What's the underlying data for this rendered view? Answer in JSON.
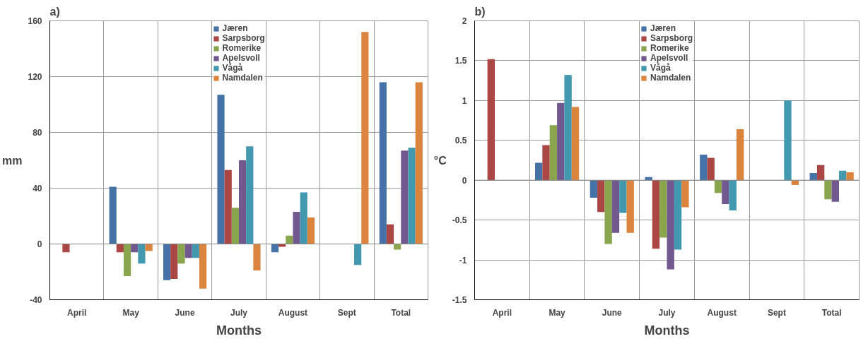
{
  "chart_data": [
    {
      "type": "bar",
      "title": "a)",
      "xlabel": "Months",
      "ylabel": "mm",
      "categories": [
        "April",
        "May",
        "June",
        "July",
        "August",
        "Sept",
        "Total"
      ],
      "ylim": [
        -40,
        160
      ],
      "yticks": [
        -40,
        0,
        40,
        80,
        120,
        160
      ],
      "grid": true,
      "legend": "top",
      "series": [
        {
          "name": "Jæren",
          "color": "#4572a7",
          "values": [
            null,
            41,
            -26,
            107,
            -6,
            null,
            116
          ]
        },
        {
          "name": "Sarpsborg",
          "color": "#aa4643",
          "values": [
            -6,
            -6,
            -25,
            53,
            -2,
            null,
            14
          ]
        },
        {
          "name": "Romerike",
          "color": "#89a54e",
          "values": [
            null,
            -23,
            -14,
            26,
            6,
            null,
            -4
          ]
        },
        {
          "name": "Apelsvoll",
          "color": "#71588f",
          "values": [
            null,
            -6,
            -10,
            60,
            23,
            null,
            67
          ]
        },
        {
          "name": "Vågå",
          "color": "#4198af",
          "values": [
            null,
            -14,
            -10,
            70,
            37,
            -15,
            69
          ]
        },
        {
          "name": "Namdalen",
          "color": "#db843d",
          "values": [
            null,
            -5,
            -32,
            -19,
            19,
            152,
            116
          ]
        }
      ]
    },
    {
      "type": "bar",
      "title": "b)",
      "xlabel": "Months",
      "ylabel": "°C",
      "categories": [
        "April",
        "May",
        "June",
        "July",
        "August",
        "Sept",
        "Total"
      ],
      "ylim": [
        -1.5,
        2
      ],
      "yticks": [
        -1.5,
        -1,
        -0.5,
        0,
        0.5,
        1,
        1.5,
        2
      ],
      "grid": true,
      "legend": "top",
      "series": [
        {
          "name": "Jæren",
          "color": "#4572a7",
          "values": [
            null,
            0.22,
            -0.22,
            0.04,
            0.32,
            null,
            0.09
          ]
        },
        {
          "name": "Sarpsborg",
          "color": "#aa4643",
          "values": [
            1.52,
            0.44,
            -0.4,
            -0.86,
            0.28,
            null,
            0.19
          ]
        },
        {
          "name": "Romerike",
          "color": "#89a54e",
          "values": [
            null,
            0.69,
            -0.8,
            -0.72,
            -0.16,
            null,
            -0.24
          ]
        },
        {
          "name": "Apelsvoll",
          "color": "#71588f",
          "values": [
            null,
            0.97,
            -0.66,
            -1.12,
            -0.3,
            null,
            -0.27
          ]
        },
        {
          "name": "Vågå",
          "color": "#4198af",
          "values": [
            null,
            1.32,
            -0.41,
            -0.87,
            -0.38,
            1.0,
            0.12
          ]
        },
        {
          "name": "Namdalen",
          "color": "#db843d",
          "values": [
            null,
            0.92,
            -0.66,
            -0.34,
            0.64,
            -0.06,
            0.1
          ]
        }
      ]
    }
  ]
}
